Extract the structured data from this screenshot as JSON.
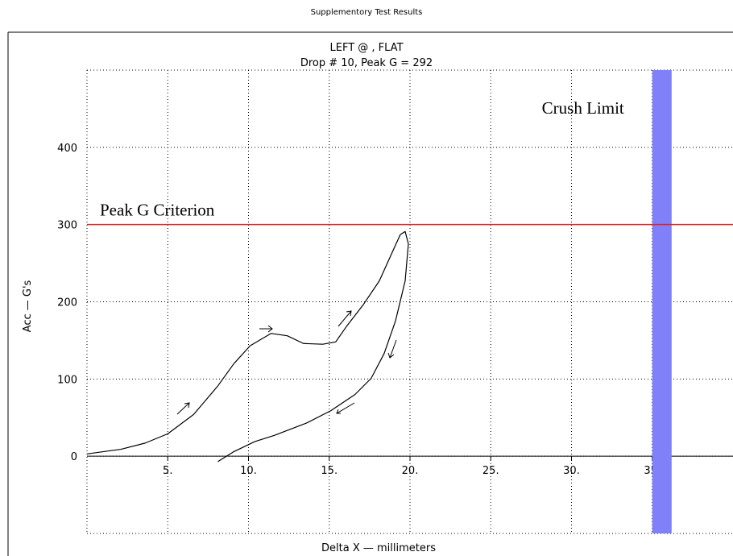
{
  "chart_data": {
    "type": "line",
    "title": "Supplementory Test Results",
    "subtitle": [
      "LEFT @ , FLAT",
      "Drop # 10, Peak G = 292"
    ],
    "x_label": "Delta X — millimeters",
    "y_label": "Acc — G's",
    "x": [
      0,
      2.1,
      3.6,
      5,
      6.6,
      8.1,
      9.1,
      10.1,
      11.4,
      12.4,
      13.4,
      14.6,
      15.4,
      16.1,
      17.1,
      18.1,
      18.9,
      19.4,
      19.7,
      19.9,
      19.7,
      19.1,
      18.4,
      17.6,
      16.6,
      15.1,
      13.6,
      11.6,
      10.4,
      9.1,
      8.1
    ],
    "series": [
      {
        "color": "#000000",
        "values": [
          3,
          9,
          17,
          29,
          54,
          91,
          120,
          143,
          159,
          156,
          146,
          145,
          148,
          169,
          196,
          227,
          264,
          287,
          291,
          275,
          227,
          175,
          133,
          101,
          80,
          59,
          43,
          27,
          19,
          6,
          -7
        ]
      }
    ],
    "xlim": [
      0,
      40
    ],
    "ylim": [
      -100,
      500
    ],
    "xticks": [
      {
        "value": 5,
        "label": "5."
      },
      {
        "value": 10,
        "label": "10."
      },
      {
        "value": 15,
        "label": "15."
      },
      {
        "value": 20,
        "label": "20."
      },
      {
        "value": 25,
        "label": "25."
      },
      {
        "value": 30,
        "label": "30."
      },
      {
        "value": 35,
        "label": "35."
      }
    ],
    "yticks": [
      0,
      100,
      200,
      300,
      400
    ],
    "grid": true,
    "peak_g_criterion": {
      "label": "Peak G Criterion",
      "y": 300,
      "color": "#e02020"
    },
    "crush_limit": {
      "label": "Crush Limit",
      "x": [
        35,
        36.2
      ],
      "color": "#8080f8"
    }
  }
}
